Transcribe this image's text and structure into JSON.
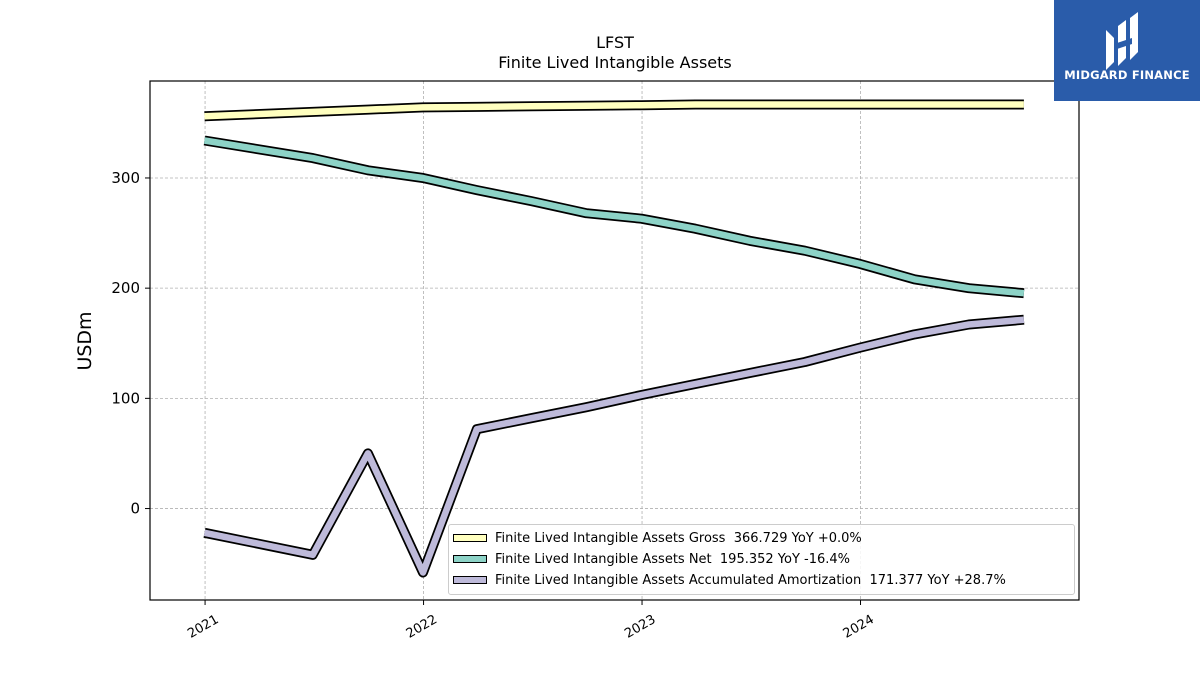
{
  "logo": {
    "text": "MIDGARD FINANCE",
    "bg": "#2a5caa"
  },
  "chart_data": {
    "type": "line",
    "title": "LFST",
    "subtitle": "Finite Lived Intangible Assets",
    "ylabel": "USDm",
    "xlabel": "",
    "x_ticks": [
      "2021",
      "2022",
      "2023",
      "2024"
    ],
    "y_ticks": [
      0,
      100,
      200,
      300
    ],
    "xlim": [
      "2020-10-01",
      "2024-12-31"
    ],
    "ylim": [
      -83,
      388
    ],
    "grid": true,
    "legend_position": "lower-right",
    "series": [
      {
        "name": "Finite Lived Intangible Assets Gross",
        "legend": "Finite Lived Intangible Assets Gross  366.729 YoY +0.0%",
        "color": "#ffffbf",
        "x": [
          "2020-12-31",
          "2021-06-30",
          "2021-09-30",
          "2021-12-31",
          "2022-03-31",
          "2022-06-30",
          "2022-09-30",
          "2022-12-31",
          "2023-03-31",
          "2023-06-30",
          "2023-09-30",
          "2023-12-31",
          "2024-03-31",
          "2024-06-30",
          "2024-09-30"
        ],
        "y": [
          356,
          360,
          362,
          364,
          364.5,
          365,
          365.5,
          366,
          366.7,
          366.7,
          366.7,
          366.7,
          366.7,
          366.7,
          366.7
        ]
      },
      {
        "name": "Finite Lived Intangible Assets Net",
        "legend": "Finite Lived Intangible Assets Net  195.352 YoY -16.4%",
        "color": "#8dd3c7",
        "x": [
          "2020-12-31",
          "2021-06-30",
          "2021-09-30",
          "2021-12-31",
          "2022-03-31",
          "2022-06-30",
          "2022-09-30",
          "2022-12-31",
          "2023-03-31",
          "2023-06-30",
          "2023-09-30",
          "2023-12-31",
          "2024-03-31",
          "2024-06-30",
          "2024-09-30"
        ],
        "y": [
          334,
          318,
          307,
          300,
          289,
          279,
          268,
          263,
          254,
          243,
          234,
          222,
          208,
          200,
          195.4
        ]
      },
      {
        "name": "Finite Lived Intangible Assets Accumulated Amortization",
        "legend": "Finite Lived Intangible Assets Accumulated Amortization  171.377 YoY +28.7%",
        "color": "#bebada",
        "x": [
          "2020-12-31",
          "2021-06-30",
          "2021-09-30",
          "2021-12-31",
          "2022-03-31",
          "2022-06-30",
          "2022-09-30",
          "2022-12-31",
          "2023-03-31",
          "2023-06-30",
          "2023-09-30",
          "2023-12-31",
          "2024-03-31",
          "2024-06-30",
          "2024-09-30"
        ],
        "y": [
          -22,
          -42,
          50,
          -58,
          72,
          82,
          92,
          103,
          113,
          123,
          133,
          146,
          158,
          167,
          171.4
        ]
      }
    ]
  }
}
